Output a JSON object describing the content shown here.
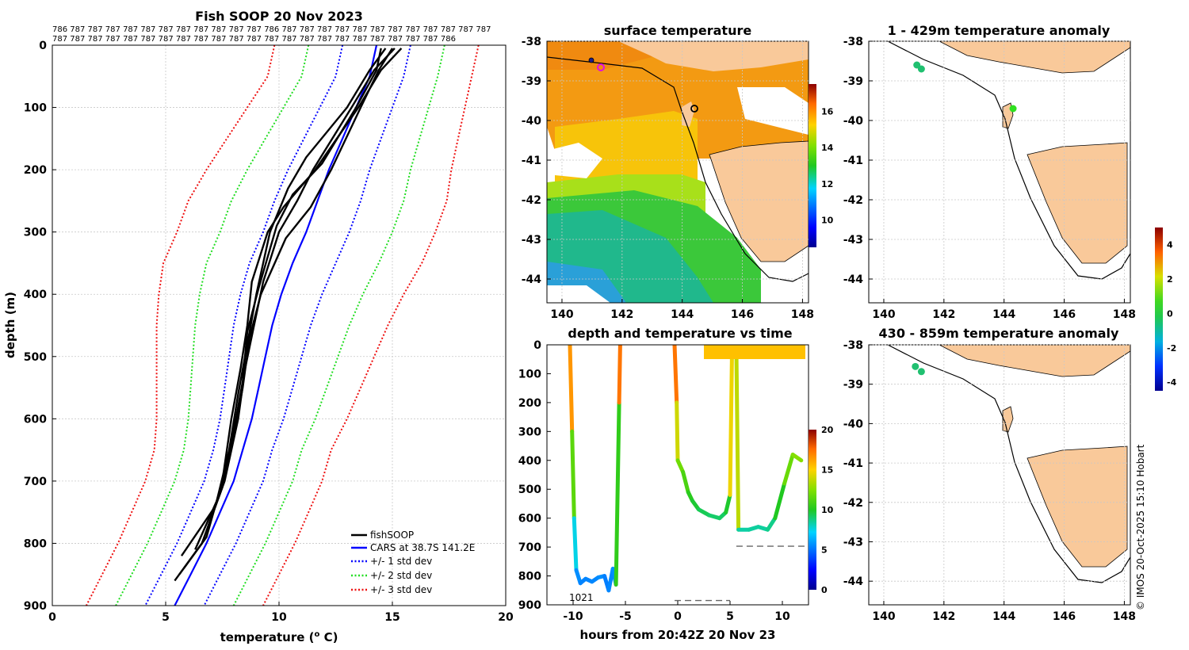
{
  "figure_title": "Fish SOOP 20 Nov 2023",
  "credit": "© IMOS 20-Oct-2025 15:10 Hobart",
  "chart_data": [
    {
      "type": "line",
      "name": "profiles",
      "title": "Fish SOOP 20 Nov 2023",
      "xlabel": "temperature (",
      "xlabel_sup": "o",
      "xlabel_tail": " C)",
      "ylabel": "depth (m)",
      "xlim": [
        0,
        20
      ],
      "ylim": [
        900,
        0
      ],
      "xticks": [
        0,
        5,
        10,
        15,
        20
      ],
      "yticks": [
        0,
        100,
        200,
        300,
        400,
        500,
        600,
        700,
        800,
        900
      ],
      "id_row1": "786 787 787 787 787 787 787 787 787 787 787 787 786 787 787 787 787 787 787 787 787 787 787 787 787",
      "id_row2": "787 787 787 787 787 787 787 787 787 787 787 787 787 787 787 787 787 787 787 787 787 787 786",
      "legend": [
        "fishSOOP",
        "CARS at 38.7S 141.2E",
        "+/- 1 std dev",
        "+/- 2 std dev",
        "+/- 3 std dev"
      ],
      "depth": [
        0,
        50,
        100,
        150,
        200,
        250,
        300,
        350,
        400,
        450,
        500,
        550,
        600,
        650,
        700,
        750,
        800,
        850,
        900
      ],
      "cars_mean": [
        14.3,
        14.0,
        13.4,
        12.8,
        12.2,
        11.7,
        11.2,
        10.6,
        10.1,
        9.7,
        9.4,
        9.1,
        8.8,
        8.4,
        8.0,
        7.4,
        6.8,
        6.1,
        5.4
      ],
      "std1": [
        1.5,
        1.5,
        1.6,
        1.7,
        1.8,
        1.9,
        1.9,
        1.9,
        1.8,
        1.7,
        1.6,
        1.5,
        1.4,
        1.3,
        1.3,
        1.3,
        1.3,
        1.3,
        1.3
      ],
      "soop_profiles": [
        {
          "depth": [
            5,
            40,
            100,
            200,
            260,
            300,
            380,
            450,
            520,
            600,
            700,
            790,
            840
          ],
          "temp": [
            15.4,
            14.5,
            13.5,
            11.6,
            10.2,
            9.5,
            8.8,
            8.6,
            8.3,
            7.9,
            7.5,
            6.8,
            5.8
          ]
        },
        {
          "depth": [
            5,
            40,
            100,
            200,
            250,
            300,
            380,
            450,
            520,
            600,
            700,
            800,
            850
          ],
          "temp": [
            15.1,
            14.2,
            13.2,
            11.5,
            10.8,
            10.0,
            9.3,
            8.9,
            8.5,
            8.2,
            7.6,
            6.6,
            5.6
          ]
        },
        {
          "depth": [
            5,
            40,
            100,
            180,
            230,
            300,
            400,
            480,
            560,
            650,
            740,
            820
          ],
          "temp": [
            14.7,
            14.0,
            13.0,
            11.2,
            10.4,
            9.6,
            9.0,
            8.6,
            8.2,
            7.8,
            7.2,
            5.7
          ]
        },
        {
          "depth": [
            5,
            40,
            100,
            200,
            260,
            310,
            400,
            470,
            550,
            630,
            720,
            810
          ],
          "temp": [
            15.0,
            14.4,
            13.6,
            12.3,
            11.4,
            10.3,
            9.2,
            8.7,
            8.4,
            8.0,
            7.4,
            6.3
          ]
        },
        {
          "depth": [
            5,
            40,
            100,
            190,
            240,
            290,
            390,
            460,
            540,
            620,
            710,
            800,
            860
          ],
          "temp": [
            14.5,
            14.3,
            13.4,
            11.9,
            10.6,
            9.9,
            9.1,
            8.6,
            8.4,
            8.0,
            7.5,
            6.6,
            5.4
          ]
        }
      ]
    },
    {
      "type": "heatmap",
      "name": "sst_map",
      "title": "surface temperature",
      "xlim": [
        139.5,
        148.2
      ],
      "ylim": [
        -44.6,
        -38
      ],
      "xticks": [
        140,
        142,
        144,
        146,
        148
      ],
      "yticks": [
        -38,
        -39,
        -40,
        -41,
        -42,
        -43,
        -44
      ],
      "colorbar_ticks": [
        10,
        12,
        14,
        16
      ],
      "colorbar_range": [
        8.5,
        17.5
      ]
    },
    {
      "type": "line",
      "name": "depth_time",
      "title": "depth and temperature vs time",
      "xlabel": "hours from 20:42Z 20 Nov 23",
      "xlim": [
        -12.5,
        12.5
      ],
      "ylim": [
        900,
        0
      ],
      "xticks": [
        -10,
        -5,
        0,
        5,
        10
      ],
      "yticks": [
        0,
        100,
        200,
        300,
        400,
        500,
        600,
        700,
        800,
        900
      ],
      "colorbar_ticks": [
        0,
        5,
        10,
        15,
        20
      ],
      "annotation": "1021",
      "track": [
        {
          "t": -10.3,
          "d": 0
        },
        {
          "t": -10.1,
          "d": 300
        },
        {
          "t": -9.9,
          "d": 600
        },
        {
          "t": -9.7,
          "d": 780
        },
        {
          "t": -9.3,
          "d": 825
        },
        {
          "t": -8.8,
          "d": 810
        },
        {
          "t": -8.2,
          "d": 820
        },
        {
          "t": -7.6,
          "d": 805
        },
        {
          "t": -7.0,
          "d": 800
        },
        {
          "t": -6.6,
          "d": 850
        },
        {
          "t": -6.2,
          "d": 775
        },
        {
          "t": -5.9,
          "d": 830
        },
        {
          "t": -5.6,
          "d": 200
        },
        {
          "t": -5.5,
          "d": 0
        },
        {
          "t": -0.3,
          "d": 0
        },
        {
          "t": -0.1,
          "d": 200
        },
        {
          "t": 0.0,
          "d": 400
        },
        {
          "t": 0.5,
          "d": 440
        },
        {
          "t": 1.0,
          "d": 510
        },
        {
          "t": 1.4,
          "d": 540
        },
        {
          "t": 2.0,
          "d": 570
        },
        {
          "t": 3.0,
          "d": 590
        },
        {
          "t": 4.0,
          "d": 600
        },
        {
          "t": 4.6,
          "d": 580
        },
        {
          "t": 5.0,
          "d": 520
        },
        {
          "t": 5.2,
          "d": 0
        },
        {
          "t": 5.6,
          "d": 0
        },
        {
          "t": 5.8,
          "d": 640
        },
        {
          "t": 6.8,
          "d": 640
        },
        {
          "t": 7.7,
          "d": 630
        },
        {
          "t": 8.6,
          "d": 640
        },
        {
          "t": 9.3,
          "d": 600
        },
        {
          "t": 10.2,
          "d": 480
        },
        {
          "t": 11.0,
          "d": 380
        },
        {
          "t": 11.8,
          "d": 400
        }
      ],
      "bottom_markers": [
        {
          "t0": -0.3,
          "t1": 5.0,
          "d": 885
        },
        {
          "t0": 5.6,
          "t1": 12.5,
          "d": 697
        }
      ]
    },
    {
      "type": "scatter",
      "name": "anom_map_1",
      "title": "1 - 429m temperature anomaly",
      "xlim": [
        139.5,
        148.2
      ],
      "ylim": [
        -44.6,
        -38
      ],
      "xticks": [
        140,
        142,
        144,
        146,
        148
      ],
      "yticks": [
        -38,
        -39,
        -40,
        -41,
        -42,
        -43,
        -44
      ],
      "points": [
        {
          "lon": 141.1,
          "lat": -38.6,
          "anomaly": 0.7
        },
        {
          "lon": 141.25,
          "lat": -38.7,
          "anomaly": 0.7
        },
        {
          "lon": 144.3,
          "lat": -39.7,
          "anomaly": 1.2
        }
      ]
    },
    {
      "type": "scatter",
      "name": "anom_map_2",
      "title": "430 - 859m temperature anomaly",
      "xlim": [
        139.5,
        148.2
      ],
      "ylim": [
        -44.6,
        -38
      ],
      "xticks": [
        140,
        142,
        144,
        146,
        148
      ],
      "yticks": [
        -38,
        -39,
        -40,
        -41,
        -42,
        -43,
        -44
      ],
      "points": [
        {
          "lon": 141.05,
          "lat": -38.55,
          "anomaly": 0.5
        },
        {
          "lon": 141.25,
          "lat": -38.68,
          "anomaly": 0.6
        }
      ],
      "colorbar_ticks": [
        -4,
        -2,
        0,
        2,
        4
      ],
      "colorbar_range": [
        -4.5,
        5
      ]
    }
  ]
}
